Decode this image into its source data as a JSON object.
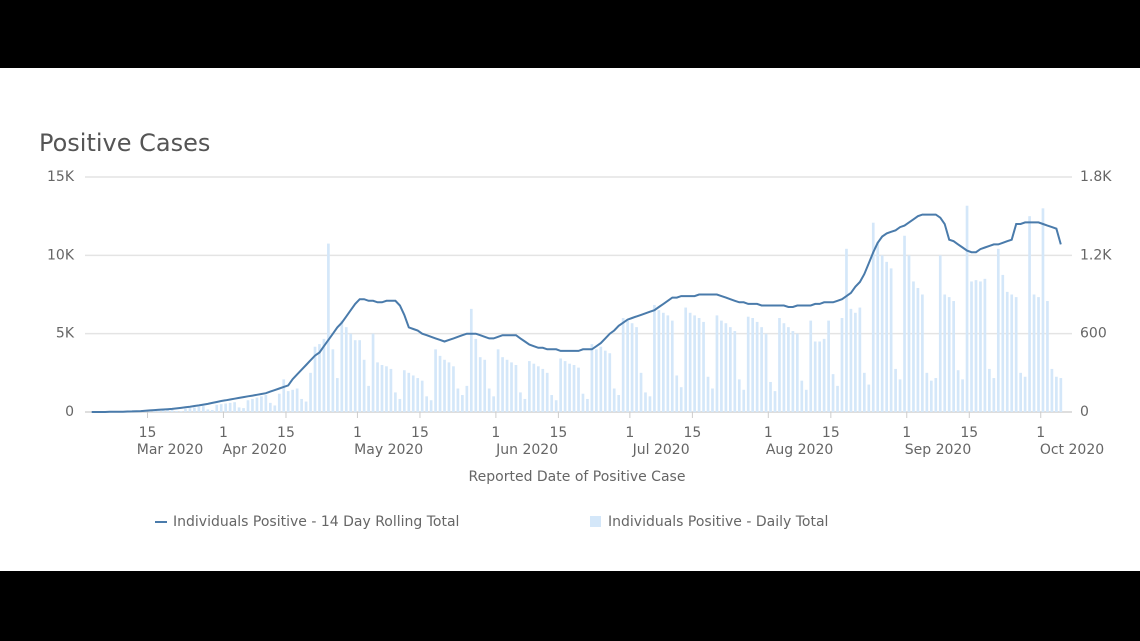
{
  "chart_data": {
    "type": "combo",
    "title": "Positive Cases",
    "x_label": "Reported Date of Positive Case",
    "x": [
      "2020-03-02",
      "2020-03-03",
      "2020-03-04",
      "2020-03-05",
      "2020-03-06",
      "2020-03-07",
      "2020-03-08",
      "2020-03-09",
      "2020-03-10",
      "2020-03-11",
      "2020-03-12",
      "2020-03-13",
      "2020-03-14",
      "2020-03-15",
      "2020-03-16",
      "2020-03-17",
      "2020-03-18",
      "2020-03-19",
      "2020-03-20",
      "2020-03-21",
      "2020-03-22",
      "2020-03-23",
      "2020-03-24",
      "2020-03-25",
      "2020-03-26",
      "2020-03-27",
      "2020-03-28",
      "2020-03-29",
      "2020-03-30",
      "2020-03-31",
      "2020-04-01",
      "2020-04-02",
      "2020-04-03",
      "2020-04-04",
      "2020-04-05",
      "2020-04-06",
      "2020-04-07",
      "2020-04-08",
      "2020-04-09",
      "2020-04-10",
      "2020-04-11",
      "2020-04-12",
      "2020-04-13",
      "2020-04-14",
      "2020-04-15",
      "2020-04-16",
      "2020-04-17",
      "2020-04-18",
      "2020-04-19",
      "2020-04-20",
      "2020-04-21",
      "2020-04-22",
      "2020-04-23",
      "2020-04-24",
      "2020-04-25",
      "2020-04-26",
      "2020-04-27",
      "2020-04-28",
      "2020-04-29",
      "2020-04-30",
      "2020-05-01",
      "2020-05-02",
      "2020-05-03",
      "2020-05-04",
      "2020-05-05",
      "2020-05-06",
      "2020-05-07",
      "2020-05-08",
      "2020-05-09",
      "2020-05-10",
      "2020-05-11",
      "2020-05-12",
      "2020-05-13",
      "2020-05-14",
      "2020-05-15",
      "2020-05-16",
      "2020-05-17",
      "2020-05-18",
      "2020-05-19",
      "2020-05-20",
      "2020-05-21",
      "2020-05-22",
      "2020-05-23",
      "2020-05-24",
      "2020-05-25",
      "2020-05-26",
      "2020-05-27",
      "2020-05-28",
      "2020-05-29",
      "2020-05-30",
      "2020-05-31",
      "2020-06-01",
      "2020-06-02",
      "2020-06-03",
      "2020-06-04",
      "2020-06-05",
      "2020-06-06",
      "2020-06-07",
      "2020-06-08",
      "2020-06-09",
      "2020-06-10",
      "2020-06-11",
      "2020-06-12",
      "2020-06-13",
      "2020-06-14",
      "2020-06-15",
      "2020-06-16",
      "2020-06-17",
      "2020-06-18",
      "2020-06-19",
      "2020-06-20",
      "2020-06-21",
      "2020-06-22",
      "2020-06-23",
      "2020-06-24",
      "2020-06-25",
      "2020-06-26",
      "2020-06-27",
      "2020-06-28",
      "2020-06-29",
      "2020-06-30",
      "2020-07-01",
      "2020-07-02",
      "2020-07-03",
      "2020-07-04",
      "2020-07-05",
      "2020-07-06",
      "2020-07-07",
      "2020-07-08",
      "2020-07-09",
      "2020-07-10",
      "2020-07-11",
      "2020-07-12",
      "2020-07-13",
      "2020-07-14",
      "2020-07-15",
      "2020-07-16",
      "2020-07-17",
      "2020-07-18",
      "2020-07-19",
      "2020-07-20",
      "2020-07-21",
      "2020-07-22",
      "2020-07-23",
      "2020-07-24",
      "2020-07-25",
      "2020-07-26",
      "2020-07-27",
      "2020-07-28",
      "2020-07-29",
      "2020-07-30",
      "2020-07-31",
      "2020-08-01",
      "2020-08-02",
      "2020-08-03",
      "2020-08-04",
      "2020-08-05",
      "2020-08-06",
      "2020-08-07",
      "2020-08-08",
      "2020-08-09",
      "2020-08-10",
      "2020-08-11",
      "2020-08-12",
      "2020-08-13",
      "2020-08-14",
      "2020-08-15",
      "2020-08-16",
      "2020-08-17",
      "2020-08-18",
      "2020-08-19",
      "2020-08-20",
      "2020-08-21",
      "2020-08-22",
      "2020-08-23",
      "2020-08-24",
      "2020-08-25",
      "2020-08-26",
      "2020-08-27",
      "2020-08-28",
      "2020-08-29",
      "2020-08-30",
      "2020-08-31",
      "2020-09-01",
      "2020-09-02",
      "2020-09-03",
      "2020-09-04",
      "2020-09-05",
      "2020-09-06",
      "2020-09-07",
      "2020-09-08",
      "2020-09-09",
      "2020-09-10",
      "2020-09-11",
      "2020-09-12",
      "2020-09-13",
      "2020-09-14",
      "2020-09-15",
      "2020-09-16",
      "2020-09-17",
      "2020-09-18",
      "2020-09-19",
      "2020-09-20",
      "2020-09-21",
      "2020-09-22",
      "2020-09-23",
      "2020-09-24",
      "2020-09-25",
      "2020-09-26",
      "2020-09-27",
      "2020-09-28",
      "2020-09-29",
      "2020-09-30",
      "2020-10-01",
      "2020-10-02",
      "2020-10-03",
      "2020-10-04",
      "2020-10-05"
    ],
    "series": [
      {
        "name": "Individuals Positive - 14 Day Rolling Total",
        "type": "line",
        "color": "#4a7bab",
        "values": [
          0,
          0,
          0,
          0,
          10,
          10,
          20,
          20,
          30,
          40,
          50,
          60,
          80,
          100,
          120,
          140,
          160,
          180,
          200,
          230,
          260,
          300,
          340,
          380,
          420,
          470,
          520,
          580,
          640,
          700,
          750,
          800,
          850,
          900,
          950,
          1000,
          1050,
          1100,
          1150,
          1200,
          1300,
          1400,
          1500,
          1600,
          1700,
          2100,
          2400,
          2700,
          3000,
          3300,
          3600,
          3800,
          4200,
          4600,
          5000,
          5400,
          5700,
          6100,
          6500,
          6900,
          7200,
          7200,
          7100,
          7100,
          7000,
          7000,
          7100,
          7100,
          7100,
          6800,
          6200,
          5400,
          5300,
          5200,
          5000,
          4900,
          4800,
          4700,
          4600,
          4500,
          4600,
          4700,
          4800,
          4900,
          5000,
          5000,
          5000,
          4900,
          4800,
          4700,
          4700,
          4800,
          4900,
          4900,
          4900,
          4900,
          4700,
          4500,
          4300,
          4200,
          4100,
          4100,
          4000,
          4000,
          4000,
          3900,
          3900,
          3900,
          3900,
          3900,
          4000,
          4000,
          4000,
          4200,
          4400,
          4700,
          5000,
          5200,
          5500,
          5700,
          5900,
          6000,
          6100,
          6200,
          6300,
          6400,
          6500,
          6700,
          6900,
          7100,
          7300,
          7300,
          7400,
          7400,
          7400,
          7400,
          7500,
          7500,
          7500,
          7500,
          7500,
          7400,
          7300,
          7200,
          7100,
          7000,
          7000,
          6900,
          6900,
          6900,
          6800,
          6800,
          6800,
          6800,
          6800,
          6800,
          6700,
          6700,
          6800,
          6800,
          6800,
          6800,
          6900,
          6900,
          7000,
          7000,
          7000,
          7100,
          7200,
          7400,
          7600,
          8000,
          8300,
          8800,
          9500,
          10200,
          10800,
          11200,
          11400,
          11500,
          11600,
          11800,
          11900,
          12100,
          12300,
          12500,
          12600,
          12600,
          12600,
          12600,
          12400,
          12000,
          11000,
          10900,
          10700,
          10500,
          10300,
          10200,
          10200,
          10400,
          10500,
          10600,
          10700,
          10700,
          10800,
          10900,
          11000,
          12000,
          12000,
          12100,
          12100,
          12100,
          12100,
          12000,
          11900,
          11800,
          11700,
          10700
        ]
      },
      {
        "name": "Individuals Positive - Daily Total",
        "type": "bar",
        "axis": "y2",
        "color": "#d4e7f9",
        "values": [
          0,
          0,
          0,
          0,
          2,
          1,
          1,
          3,
          4,
          5,
          6,
          8,
          3,
          2,
          10,
          12,
          14,
          16,
          18,
          8,
          6,
          25,
          30,
          35,
          40,
          45,
          20,
          15,
          55,
          60,
          65,
          70,
          75,
          35,
          30,
          90,
          100,
          110,
          120,
          130,
          70,
          50,
          140,
          250,
          160,
          170,
          180,
          100,
          80,
          300,
          500,
          520,
          560,
          1290,
          480,
          260,
          700,
          650,
          600,
          550,
          550,
          400,
          200,
          600,
          380,
          360,
          350,
          330,
          150,
          100,
          320,
          300,
          280,
          260,
          240,
          120,
          90,
          480,
          430,
          400,
          380,
          350,
          180,
          130,
          200,
          790,
          560,
          420,
          400,
          180,
          120,
          480,
          420,
          400,
          380,
          360,
          150,
          100,
          390,
          370,
          350,
          330,
          300,
          130,
          90,
          410,
          390,
          370,
          360,
          340,
          140,
          100,
          520,
          480,
          500,
          470,
          450,
          180,
          130,
          720,
          700,
          680,
          650,
          300,
          150,
          120,
          820,
          780,
          760,
          740,
          700,
          280,
          190,
          800,
          760,
          740,
          720,
          690,
          270,
          180,
          740,
          700,
          680,
          650,
          620,
          250,
          170,
          730,
          720,
          690,
          650,
          600,
          230,
          160,
          720,
          680,
          650,
          620,
          600,
          240,
          170,
          700,
          540,
          540,
          560,
          700,
          290,
          200,
          720,
          1250,
          790,
          760,
          800,
          300,
          210,
          1450,
          1300,
          1200,
          1150,
          1100,
          330,
          250,
          1350,
          1200,
          1000,
          950,
          900,
          300,
          240,
          260,
          1200,
          900,
          880,
          850,
          320,
          250,
          1580,
          1000,
          1010,
          1000,
          1020,
          330,
          260,
          1250,
          1050,
          920,
          900,
          880,
          300,
          270,
          1500,
          900,
          880,
          1560,
          850,
          330,
          270,
          260
        ]
      }
    ],
    "xlim": [
      "2020-03-01",
      "2020-10-08"
    ],
    "xticks": [
      {
        "value": "2020-03-15",
        "label": "15"
      },
      {
        "value": "2020-04-01",
        "label": "1"
      },
      {
        "value": "2020-04-15",
        "label": "15"
      },
      {
        "value": "2020-05-01",
        "label": "1"
      },
      {
        "value": "2020-05-15",
        "label": "15"
      },
      {
        "value": "2020-06-01",
        "label": "1"
      },
      {
        "value": "2020-06-15",
        "label": "15"
      },
      {
        "value": "2020-07-01",
        "label": "1"
      },
      {
        "value": "2020-07-15",
        "label": "15"
      },
      {
        "value": "2020-08-01",
        "label": "1"
      },
      {
        "value": "2020-08-15",
        "label": "15"
      },
      {
        "value": "2020-09-01",
        "label": "1"
      },
      {
        "value": "2020-09-15",
        "label": "15"
      },
      {
        "value": "2020-10-01",
        "label": "1"
      }
    ],
    "xmonths": [
      {
        "value": "2020-03-01",
        "label": "Mar 2020"
      },
      {
        "value": "2020-04-01",
        "label": "Apr 2020"
      },
      {
        "value": "2020-05-01",
        "label": "May 2020"
      },
      {
        "value": "2020-06-01",
        "label": "Jun 2020"
      },
      {
        "value": "2020-07-01",
        "label": "Jul 2020"
      },
      {
        "value": "2020-08-01",
        "label": "Aug 2020"
      },
      {
        "value": "2020-09-01",
        "label": "Sep 2020"
      },
      {
        "value": "2020-10-01",
        "label": "Oct 2020"
      }
    ],
    "ylim": [
      0,
      15000
    ],
    "yticks": [
      0,
      {
        "value": 5000,
        "label": "5K"
      },
      {
        "value": 10000,
        "label": "10K"
      },
      {
        "value": 15000,
        "label": "15K"
      }
    ],
    "y2lim": [
      0,
      1800
    ],
    "y2ticks": [
      0,
      600,
      {
        "value": 1200,
        "label": "1.2K"
      },
      {
        "value": 1800,
        "label": "1.8K"
      }
    ],
    "grid": true
  }
}
